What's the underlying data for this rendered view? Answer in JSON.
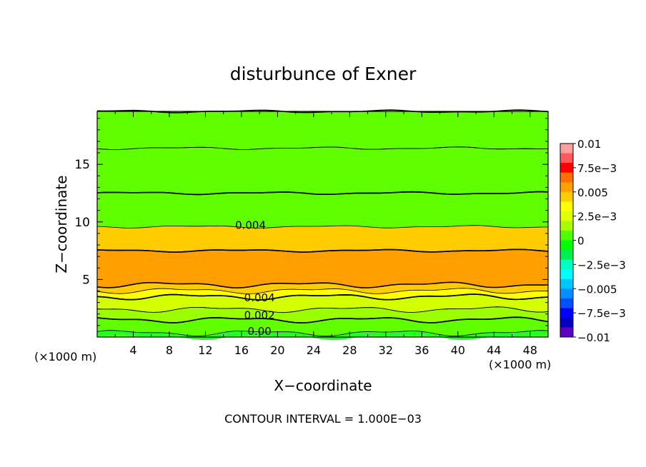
{
  "chart_data": {
    "type": "heatmap",
    "title": "disturbunce of Exner",
    "xlabel": "X−coordinate",
    "ylabel": "Z−coordinate",
    "x_unit_left": "(×1000 m)",
    "x_unit_right": "(×1000 m)",
    "xlim": [
      0,
      50
    ],
    "ylim": [
      0,
      19.6
    ],
    "xticks": [
      4,
      8,
      12,
      16,
      20,
      24,
      28,
      32,
      36,
      40,
      44,
      48
    ],
    "yticks": [
      5,
      10,
      15
    ],
    "footer": "CONTOUR INTERVAL = 1.000E−03",
    "contour_interval": 0.001,
    "contour_labels": [
      {
        "text": "0.004",
        "x": 17,
        "z": 9.7
      },
      {
        "text": "0.004",
        "x": 18,
        "z": 3.4
      },
      {
        "text": "0.002",
        "x": 18,
        "z": 1.9
      },
      {
        "text": "0.00",
        "x": 18,
        "z": 0.5
      }
    ],
    "colorbar": {
      "range": [
        -0.01,
        0.01
      ],
      "tick_labels": [
        "0.01",
        "7.5e−3",
        "0.005",
        "2.5e−3",
        "0",
        "−2.5e−3",
        "−0.005",
        "−7.5e−3",
        "−0.01"
      ],
      "tick_values": [
        0.01,
        0.0075,
        0.005,
        0.0025,
        0,
        -0.0025,
        -0.005,
        -0.0075,
        -0.01
      ],
      "colors": [
        "#ffa0a0",
        "#ff5a5a",
        "#ff0000",
        "#ff7000",
        "#ffa000",
        "#ffcc00",
        "#ffff00",
        "#e0ff00",
        "#a8ff00",
        "#50ff00",
        "#00ff00",
        "#00ee50",
        "#00ffc0",
        "#00ffff",
        "#00c8ff",
        "#0090ff",
        "#0050ff",
        "#0000ff",
        "#0000c0",
        "#6000c0"
      ]
    },
    "levels": [
      {
        "range": [
          0.0,
          0.001
        ],
        "color": "#22ff22"
      },
      {
        "range": [
          0.001,
          0.002
        ],
        "color": "#60ff00"
      },
      {
        "range": [
          0.002,
          0.003
        ],
        "color": "#9cff00"
      },
      {
        "range": [
          0.003,
          0.004
        ],
        "color": "#d4ff00"
      },
      {
        "range": [
          0.004,
          0.005
        ],
        "color": "#ffff00"
      },
      {
        "range": [
          0.005,
          0.006
        ],
        "color": "#ffcc00"
      },
      {
        "range": [
          0.006,
          0.007
        ],
        "color": "#ffa000"
      },
      {
        "range": [
          0.007,
          0.008
        ],
        "color": "#f07838"
      }
    ],
    "field_profile": [
      {
        "z": 0.0,
        "value": 0.0008
      },
      {
        "z": 0.7,
        "value": 0.0012
      },
      {
        "z": 1.5,
        "value": 0.002
      },
      {
        "z": 2.4,
        "value": 0.003
      },
      {
        "z": 3.5,
        "value": 0.004
      },
      {
        "z": 4.8,
        "value": 0.0065
      },
      {
        "z": 7.5,
        "value": 0.006
      },
      {
        "z": 10.0,
        "value": 0.0048
      },
      {
        "z": 12.5,
        "value": 0.004
      },
      {
        "z": 16.4,
        "value": 0.003
      },
      {
        "z": 18.5,
        "value": 0.0025
      },
      {
        "z": 19.6,
        "value": 0.002
      }
    ]
  }
}
